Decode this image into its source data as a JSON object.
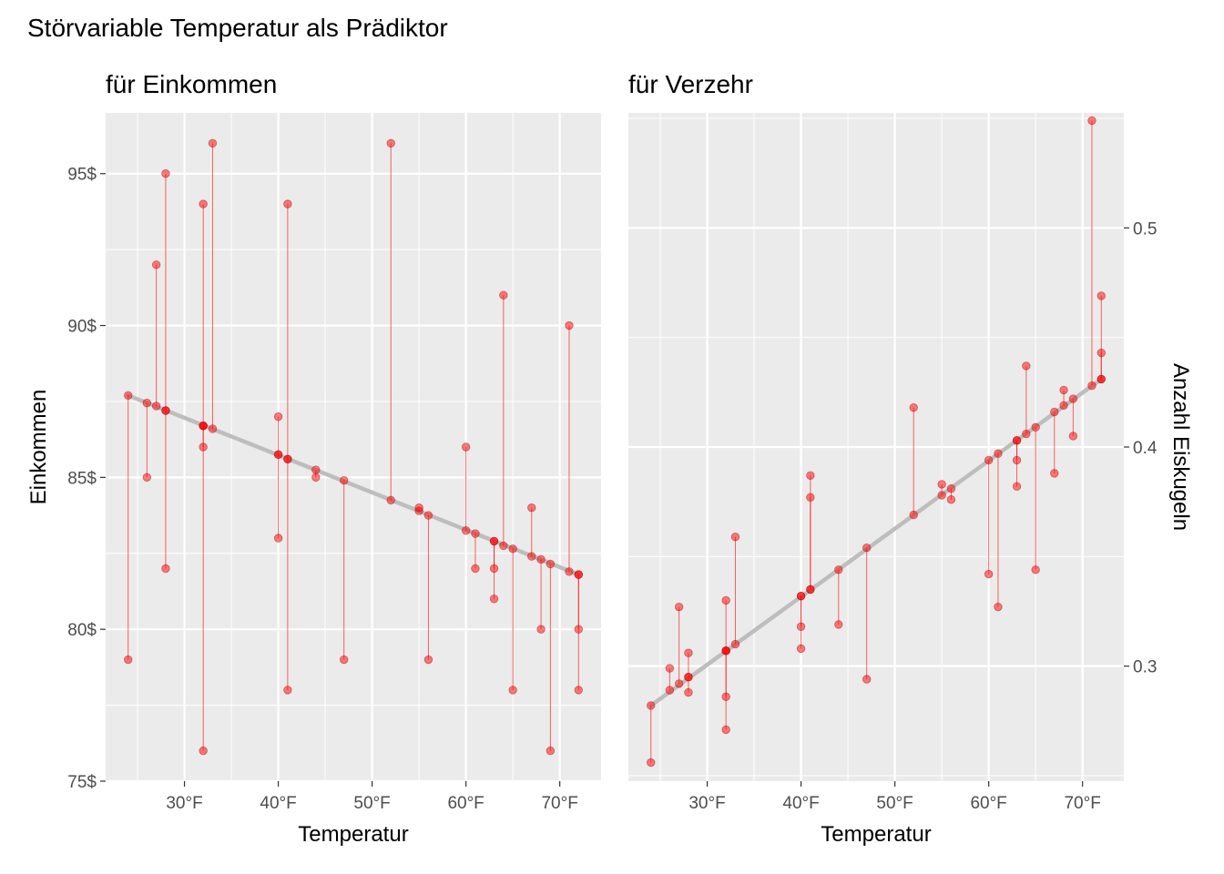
{
  "figure_title": "Störvariable Temperatur als Prädiktor",
  "chart_data": [
    {
      "type": "scatter",
      "subtitle": "für Einkommen",
      "xlabel": "Temperatur",
      "ylabel": "Einkommen",
      "ylabel_side": "left",
      "xlim": [
        21.6,
        74.4
      ],
      "ylim": [
        75,
        97
      ],
      "xticks": [
        30,
        40,
        50,
        60,
        70
      ],
      "xtick_labels": [
        "30°F",
        "40°F",
        "50°F",
        "60°F",
        "70°F"
      ],
      "yticks": [
        75,
        80,
        85,
        90,
        95
      ],
      "ytick_labels": [
        "75$",
        "80$",
        "85$",
        "90$",
        "95$"
      ],
      "fit_line": {
        "x": [
          24,
          72
        ],
        "y": [
          87.7,
          81.8
        ]
      },
      "points": [
        {
          "x": 24,
          "y": 79,
          "fitted": 87.7
        },
        {
          "x": 26,
          "y": 85,
          "fitted": 87.45
        },
        {
          "x": 27,
          "y": 92,
          "fitted": 87.35
        },
        {
          "x": 28,
          "y": 95,
          "fitted": 87.2
        },
        {
          "x": 28,
          "y": 82,
          "fitted": 87.2
        },
        {
          "x": 32,
          "y": 94,
          "fitted": 86.7
        },
        {
          "x": 32,
          "y": 86,
          "fitted": 86.7
        },
        {
          "x": 32,
          "y": 76,
          "fitted": 86.7
        },
        {
          "x": 33,
          "y": 96,
          "fitted": 86.6
        },
        {
          "x": 40,
          "y": 87,
          "fitted": 85.75
        },
        {
          "x": 40,
          "y": 83,
          "fitted": 85.75
        },
        {
          "x": 41,
          "y": 94,
          "fitted": 85.6
        },
        {
          "x": 41,
          "y": 78,
          "fitted": 85.6
        },
        {
          "x": 44,
          "y": 85,
          "fitted": 85.25
        },
        {
          "x": 47,
          "y": 79,
          "fitted": 84.9
        },
        {
          "x": 52,
          "y": 96,
          "fitted": 84.25
        },
        {
          "x": 55,
          "y": 84,
          "fitted": 83.9
        },
        {
          "x": 56,
          "y": 79,
          "fitted": 83.75
        },
        {
          "x": 60,
          "y": 86,
          "fitted": 83.25
        },
        {
          "x": 61,
          "y": 82,
          "fitted": 83.15
        },
        {
          "x": 63,
          "y": 82,
          "fitted": 82.9
        },
        {
          "x": 63,
          "y": 81,
          "fitted": 82.9
        },
        {
          "x": 64,
          "y": 91,
          "fitted": 82.75
        },
        {
          "x": 65,
          "y": 78,
          "fitted": 82.65
        },
        {
          "x": 67,
          "y": 84,
          "fitted": 82.4
        },
        {
          "x": 68,
          "y": 80,
          "fitted": 82.3
        },
        {
          "x": 69,
          "y": 76,
          "fitted": 82.15
        },
        {
          "x": 71,
          "y": 90,
          "fitted": 81.9
        },
        {
          "x": 72,
          "y": 80,
          "fitted": 81.8
        },
        {
          "x": 72,
          "y": 78,
          "fitted": 81.8
        }
      ]
    },
    {
      "type": "scatter",
      "subtitle": "für Verzehr",
      "xlabel": "Temperatur",
      "ylabel": "Anzahl Eiskugeln",
      "ylabel_side": "right",
      "xlim": [
        21.6,
        74.4
      ],
      "ylim": [
        0.2475,
        0.5525
      ],
      "xticks": [
        30,
        40,
        50,
        60,
        70
      ],
      "xtick_labels": [
        "30°F",
        "40°F",
        "50°F",
        "60°F",
        "70°F"
      ],
      "yticks": [
        0.3,
        0.4,
        0.5
      ],
      "ytick_labels": [
        "0.3",
        "0.4",
        "0.5"
      ],
      "fit_line": {
        "x": [
          24,
          72
        ],
        "y": [
          0.282,
          0.431
        ]
      },
      "points": [
        {
          "x": 24,
          "y": 0.256,
          "fitted": 0.282
        },
        {
          "x": 26,
          "y": 0.299,
          "fitted": 0.289
        },
        {
          "x": 27,
          "y": 0.327,
          "fitted": 0.292
        },
        {
          "x": 28,
          "y": 0.306,
          "fitted": 0.295
        },
        {
          "x": 28,
          "y": 0.288,
          "fitted": 0.295
        },
        {
          "x": 32,
          "y": 0.33,
          "fitted": 0.307
        },
        {
          "x": 32,
          "y": 0.286,
          "fitted": 0.307
        },
        {
          "x": 32,
          "y": 0.271,
          "fitted": 0.307
        },
        {
          "x": 33,
          "y": 0.359,
          "fitted": 0.31
        },
        {
          "x": 40,
          "y": 0.318,
          "fitted": 0.332
        },
        {
          "x": 40,
          "y": 0.308,
          "fitted": 0.332
        },
        {
          "x": 41,
          "y": 0.387,
          "fitted": 0.335
        },
        {
          "x": 41,
          "y": 0.377,
          "fitted": 0.335
        },
        {
          "x": 44,
          "y": 0.319,
          "fitted": 0.344
        },
        {
          "x": 47,
          "y": 0.294,
          "fitted": 0.354
        },
        {
          "x": 52,
          "y": 0.418,
          "fitted": 0.369
        },
        {
          "x": 55,
          "y": 0.383,
          "fitted": 0.378
        },
        {
          "x": 56,
          "y": 0.376,
          "fitted": 0.381
        },
        {
          "x": 60,
          "y": 0.342,
          "fitted": 0.394
        },
        {
          "x": 61,
          "y": 0.327,
          "fitted": 0.397
        },
        {
          "x": 63,
          "y": 0.394,
          "fitted": 0.403
        },
        {
          "x": 63,
          "y": 0.382,
          "fitted": 0.403
        },
        {
          "x": 64,
          "y": 0.437,
          "fitted": 0.406
        },
        {
          "x": 65,
          "y": 0.344,
          "fitted": 0.409
        },
        {
          "x": 67,
          "y": 0.388,
          "fitted": 0.416
        },
        {
          "x": 68,
          "y": 0.426,
          "fitted": 0.419
        },
        {
          "x": 69,
          "y": 0.405,
          "fitted": 0.422
        },
        {
          "x": 71,
          "y": 0.549,
          "fitted": 0.428
        },
        {
          "x": 72,
          "y": 0.469,
          "fitted": 0.431
        },
        {
          "x": 72,
          "y": 0.443,
          "fitted": 0.431
        }
      ]
    }
  ]
}
